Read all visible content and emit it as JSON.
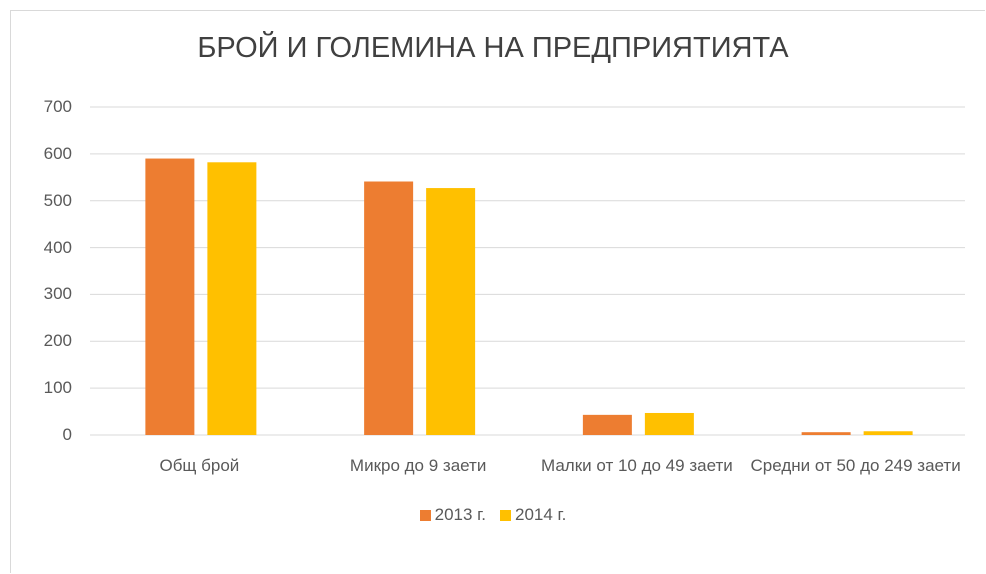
{
  "chart_data": {
    "type": "bar",
    "title": "БРОЙ И ГОЛЕМИНА НА ПРЕДПРИЯТИЯТА",
    "categories": [
      "Общ брой",
      "Микро до 9 заети",
      "Малки от 10 до 49 заети",
      "Средни от 50 до 249 заети"
    ],
    "series": [
      {
        "name": "2013 г.",
        "color": "#ed7d31",
        "values": [
          590,
          541,
          43,
          6
        ]
      },
      {
        "name": "2014 г.",
        "color": "#ffc000",
        "values": [
          582,
          527,
          47,
          8
        ]
      }
    ],
    "ylim": [
      0,
      700
    ],
    "yticks": [
      0,
      100,
      200,
      300,
      400,
      500,
      600,
      700
    ],
    "grid": true,
    "legend": "bottom"
  }
}
